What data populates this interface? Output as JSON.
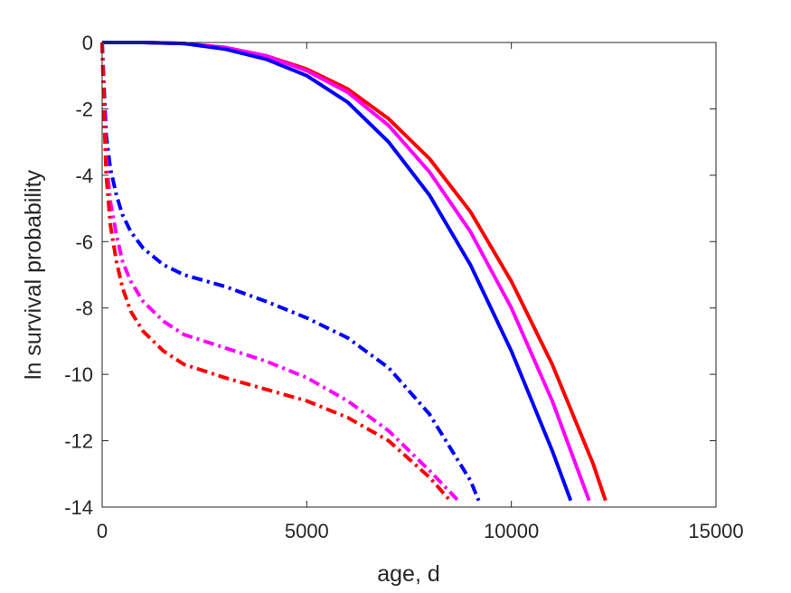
{
  "chart_data": {
    "type": "line",
    "title": "",
    "xlabel": "age, d",
    "ylabel": "ln survival probability",
    "xlim": [
      0,
      15000
    ],
    "ylim": [
      -14,
      0
    ],
    "xticks": [
      0,
      5000,
      10000,
      15000
    ],
    "xtick_labels": [
      "0",
      "5000",
      "10000",
      "15000"
    ],
    "yticks": [
      0,
      -2,
      -4,
      -6,
      -8,
      -10,
      -12,
      -14
    ],
    "ytick_labels": [
      "0",
      "-2",
      "-4",
      "-6",
      "-8",
      "-10",
      "-12",
      "-14"
    ],
    "grid": false,
    "legend": "none",
    "series": [
      {
        "color": "#ff0000",
        "linestyle": "solid",
        "x": [
          0,
          1000,
          2000,
          3000,
          4000,
          5000,
          6000,
          7000,
          8000,
          9000,
          10000,
          11000,
          12000,
          12300
        ],
        "y": [
          0,
          0,
          -0.03,
          -0.15,
          -0.4,
          -0.8,
          -1.4,
          -2.3,
          -3.5,
          -5.1,
          -7.2,
          -9.7,
          -12.7,
          -13.8
        ]
      },
      {
        "color": "#ff00ff",
        "linestyle": "solid",
        "x": [
          0,
          1000,
          2000,
          3000,
          4000,
          5000,
          6000,
          7000,
          8000,
          9000,
          10000,
          11000,
          11900
        ],
        "y": [
          0,
          0,
          -0.03,
          -0.15,
          -0.4,
          -0.85,
          -1.5,
          -2.5,
          -3.9,
          -5.7,
          -8.0,
          -10.8,
          -13.8
        ]
      },
      {
        "color": "#0000ff",
        "linestyle": "solid",
        "x": [
          0,
          1000,
          2000,
          3000,
          4000,
          5000,
          6000,
          7000,
          8000,
          9000,
          10000,
          11000,
          11450
        ],
        "y": [
          0,
          0,
          -0.03,
          -0.2,
          -0.5,
          -1.0,
          -1.8,
          -3.0,
          -4.6,
          -6.7,
          -9.3,
          -12.3,
          -13.8
        ]
      },
      {
        "color": "#0000ff",
        "linestyle": "dashdot",
        "x": [
          0,
          50,
          100,
          200,
          350,
          500,
          700,
          1000,
          1500,
          2000,
          3000,
          4000,
          5000,
          6000,
          7000,
          8000,
          9000,
          9200
        ],
        "y": [
          0,
          -1.5,
          -2.8,
          -3.8,
          -4.6,
          -5.2,
          -5.7,
          -6.2,
          -6.7,
          -7.0,
          -7.35,
          -7.8,
          -8.3,
          -8.9,
          -9.8,
          -11.2,
          -13.2,
          -13.8
        ]
      },
      {
        "color": "#ff00ff",
        "linestyle": "dashdot",
        "x": [
          0,
          50,
          100,
          200,
          350,
          500,
          700,
          1000,
          1500,
          2000,
          3000,
          4000,
          5000,
          6000,
          7000,
          8000,
          8700
        ],
        "y": [
          0,
          -2.0,
          -3.5,
          -4.8,
          -5.8,
          -6.6,
          -7.2,
          -7.8,
          -8.4,
          -8.8,
          -9.2,
          -9.6,
          -10.1,
          -10.8,
          -11.7,
          -12.9,
          -13.8
        ]
      },
      {
        "color": "#ff0000",
        "linestyle": "dashdot",
        "x": [
          0,
          50,
          100,
          200,
          350,
          500,
          700,
          1000,
          1500,
          2000,
          3000,
          4000,
          5000,
          6000,
          7000,
          8000,
          8500
        ],
        "y": [
          0,
          -2.3,
          -4.0,
          -5.5,
          -6.6,
          -7.4,
          -8.1,
          -8.7,
          -9.3,
          -9.7,
          -10.1,
          -10.45,
          -10.8,
          -11.3,
          -12.0,
          -13.1,
          -13.8
        ]
      }
    ]
  }
}
